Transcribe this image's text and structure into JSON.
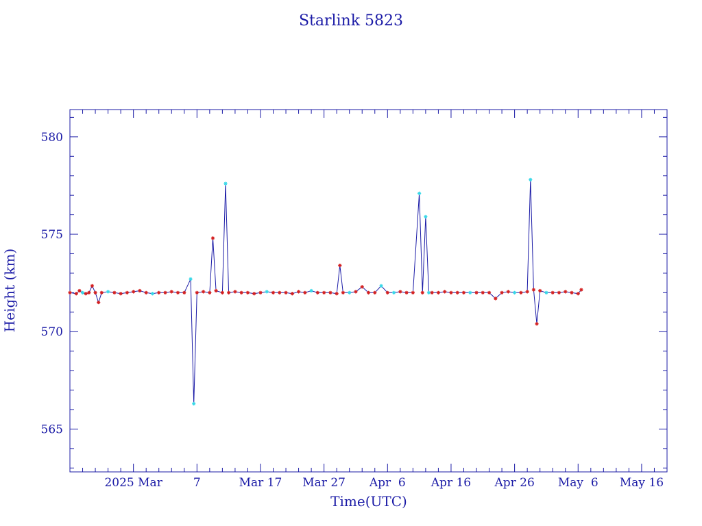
{
  "chart_data": {
    "type": "line",
    "title": "Starlink 5823",
    "xlabel": "Time(UTC)",
    "ylabel": "Height (km)",
    "x_tick_labels": [
      "2025 Mar",
      "7",
      "Mar 17",
      "Mar 27",
      "Apr  6",
      "Apr 16",
      "Apr 26",
      "May  6",
      "May 16"
    ],
    "x_tick_dates": [
      "2025-02-25",
      "2025-03-07",
      "2025-03-17",
      "2025-03-27",
      "2025-04-06",
      "2025-04-16",
      "2025-04-26",
      "2025-05-06",
      "2025-05-16"
    ],
    "y_tick_labels": [
      "565",
      "570",
      "575",
      "580"
    ],
    "ylim": [
      562.8,
      581.4
    ],
    "xlim": [
      "2025-02-15",
      "2025-05-20"
    ],
    "grid": false,
    "colors": {
      "axis": "#1a1aa6",
      "line": "#1a1aa6",
      "marker_main": "#d42020",
      "marker_alt": "#38d8e8"
    },
    "series": [
      {
        "points": [
          [
            "2025-02-15",
            572.0
          ],
          [
            "2025-02-16",
            571.95
          ],
          [
            "2025-02-16",
            572.1
          ],
          [
            "2025-02-17",
            572.0
          ],
          [
            "2025-02-17",
            571.95
          ],
          [
            "2025-02-18",
            572.0
          ],
          [
            "2025-02-18",
            572.35
          ],
          [
            "2025-02-19",
            572.0
          ],
          [
            "2025-02-19",
            571.5
          ],
          [
            "2025-02-20",
            572.0
          ],
          [
            "2025-02-21",
            572.05
          ],
          [
            "2025-02-22",
            572.0
          ],
          [
            "2025-02-23",
            571.95
          ],
          [
            "2025-02-24",
            572.0
          ],
          [
            "2025-02-25",
            572.05
          ],
          [
            "2025-02-26",
            572.1
          ],
          [
            "2025-02-27",
            572.0
          ],
          [
            "2025-02-28",
            571.95
          ],
          [
            "2025-03-01",
            572.0
          ],
          [
            "2025-03-02",
            572.0
          ],
          [
            "2025-03-03",
            572.05
          ],
          [
            "2025-03-04",
            572.0
          ],
          [
            "2025-03-05",
            572.0
          ],
          [
            "2025-03-06",
            572.7
          ],
          [
            "2025-03-06",
            566.3
          ],
          [
            "2025-03-07",
            572.0
          ],
          [
            "2025-03-08",
            572.05
          ],
          [
            "2025-03-09",
            572.0
          ],
          [
            "2025-03-09",
            574.8
          ],
          [
            "2025-03-10",
            572.1
          ],
          [
            "2025-03-11",
            572.0
          ],
          [
            "2025-03-11",
            577.6
          ],
          [
            "2025-03-12",
            572.0
          ],
          [
            "2025-03-13",
            572.05
          ],
          [
            "2025-03-14",
            572.0
          ],
          [
            "2025-03-15",
            572.0
          ],
          [
            "2025-03-16",
            571.95
          ],
          [
            "2025-03-17",
            572.0
          ],
          [
            "2025-03-18",
            572.05
          ],
          [
            "2025-03-19",
            572.0
          ],
          [
            "2025-03-20",
            572.0
          ],
          [
            "2025-03-21",
            572.0
          ],
          [
            "2025-03-22",
            571.95
          ],
          [
            "2025-03-23",
            572.05
          ],
          [
            "2025-03-24",
            572.0
          ],
          [
            "2025-03-25",
            572.1
          ],
          [
            "2025-03-26",
            572.0
          ],
          [
            "2025-03-27",
            572.0
          ],
          [
            "2025-03-28",
            572.0
          ],
          [
            "2025-03-29",
            571.95
          ],
          [
            "2025-03-29",
            573.4
          ],
          [
            "2025-03-30",
            572.0
          ],
          [
            "2025-03-31",
            572.0
          ],
          [
            "2025-04-01",
            572.05
          ],
          [
            "2025-04-02",
            572.3
          ],
          [
            "2025-04-03",
            572.0
          ],
          [
            "2025-04-04",
            572.0
          ],
          [
            "2025-04-05",
            572.35
          ],
          [
            "2025-04-06",
            572.0
          ],
          [
            "2025-04-07",
            572.0
          ],
          [
            "2025-04-08",
            572.05
          ],
          [
            "2025-04-09",
            572.0
          ],
          [
            "2025-04-10",
            572.0
          ],
          [
            "2025-04-11",
            577.1
          ],
          [
            "2025-04-11",
            572.0
          ],
          [
            "2025-04-12",
            575.9
          ],
          [
            "2025-04-12",
            572.0
          ],
          [
            "2025-04-13",
            572.0
          ],
          [
            "2025-04-14",
            572.0
          ],
          [
            "2025-04-15",
            572.05
          ],
          [
            "2025-04-16",
            572.0
          ],
          [
            "2025-04-17",
            572.0
          ],
          [
            "2025-04-18",
            572.0
          ],
          [
            "2025-04-19",
            572.0
          ],
          [
            "2025-04-20",
            572.0
          ],
          [
            "2025-04-21",
            572.0
          ],
          [
            "2025-04-22",
            572.0
          ],
          [
            "2025-04-23",
            571.7
          ],
          [
            "2025-04-24",
            572.0
          ],
          [
            "2025-04-25",
            572.05
          ],
          [
            "2025-04-26",
            572.0
          ],
          [
            "2025-04-27",
            572.0
          ],
          [
            "2025-04-28",
            572.05
          ],
          [
            "2025-04-28",
            577.8
          ],
          [
            "2025-04-29",
            572.15
          ],
          [
            "2025-04-29",
            570.4
          ],
          [
            "2025-04-30",
            572.1
          ],
          [
            "2025-05-01",
            572.0
          ],
          [
            "2025-05-02",
            572.0
          ],
          [
            "2025-05-03",
            572.0
          ],
          [
            "2025-05-04",
            572.05
          ],
          [
            "2025-05-05",
            572.0
          ],
          [
            "2025-05-06",
            571.95
          ],
          [
            "2025-05-06",
            572.15
          ]
        ]
      }
    ]
  }
}
